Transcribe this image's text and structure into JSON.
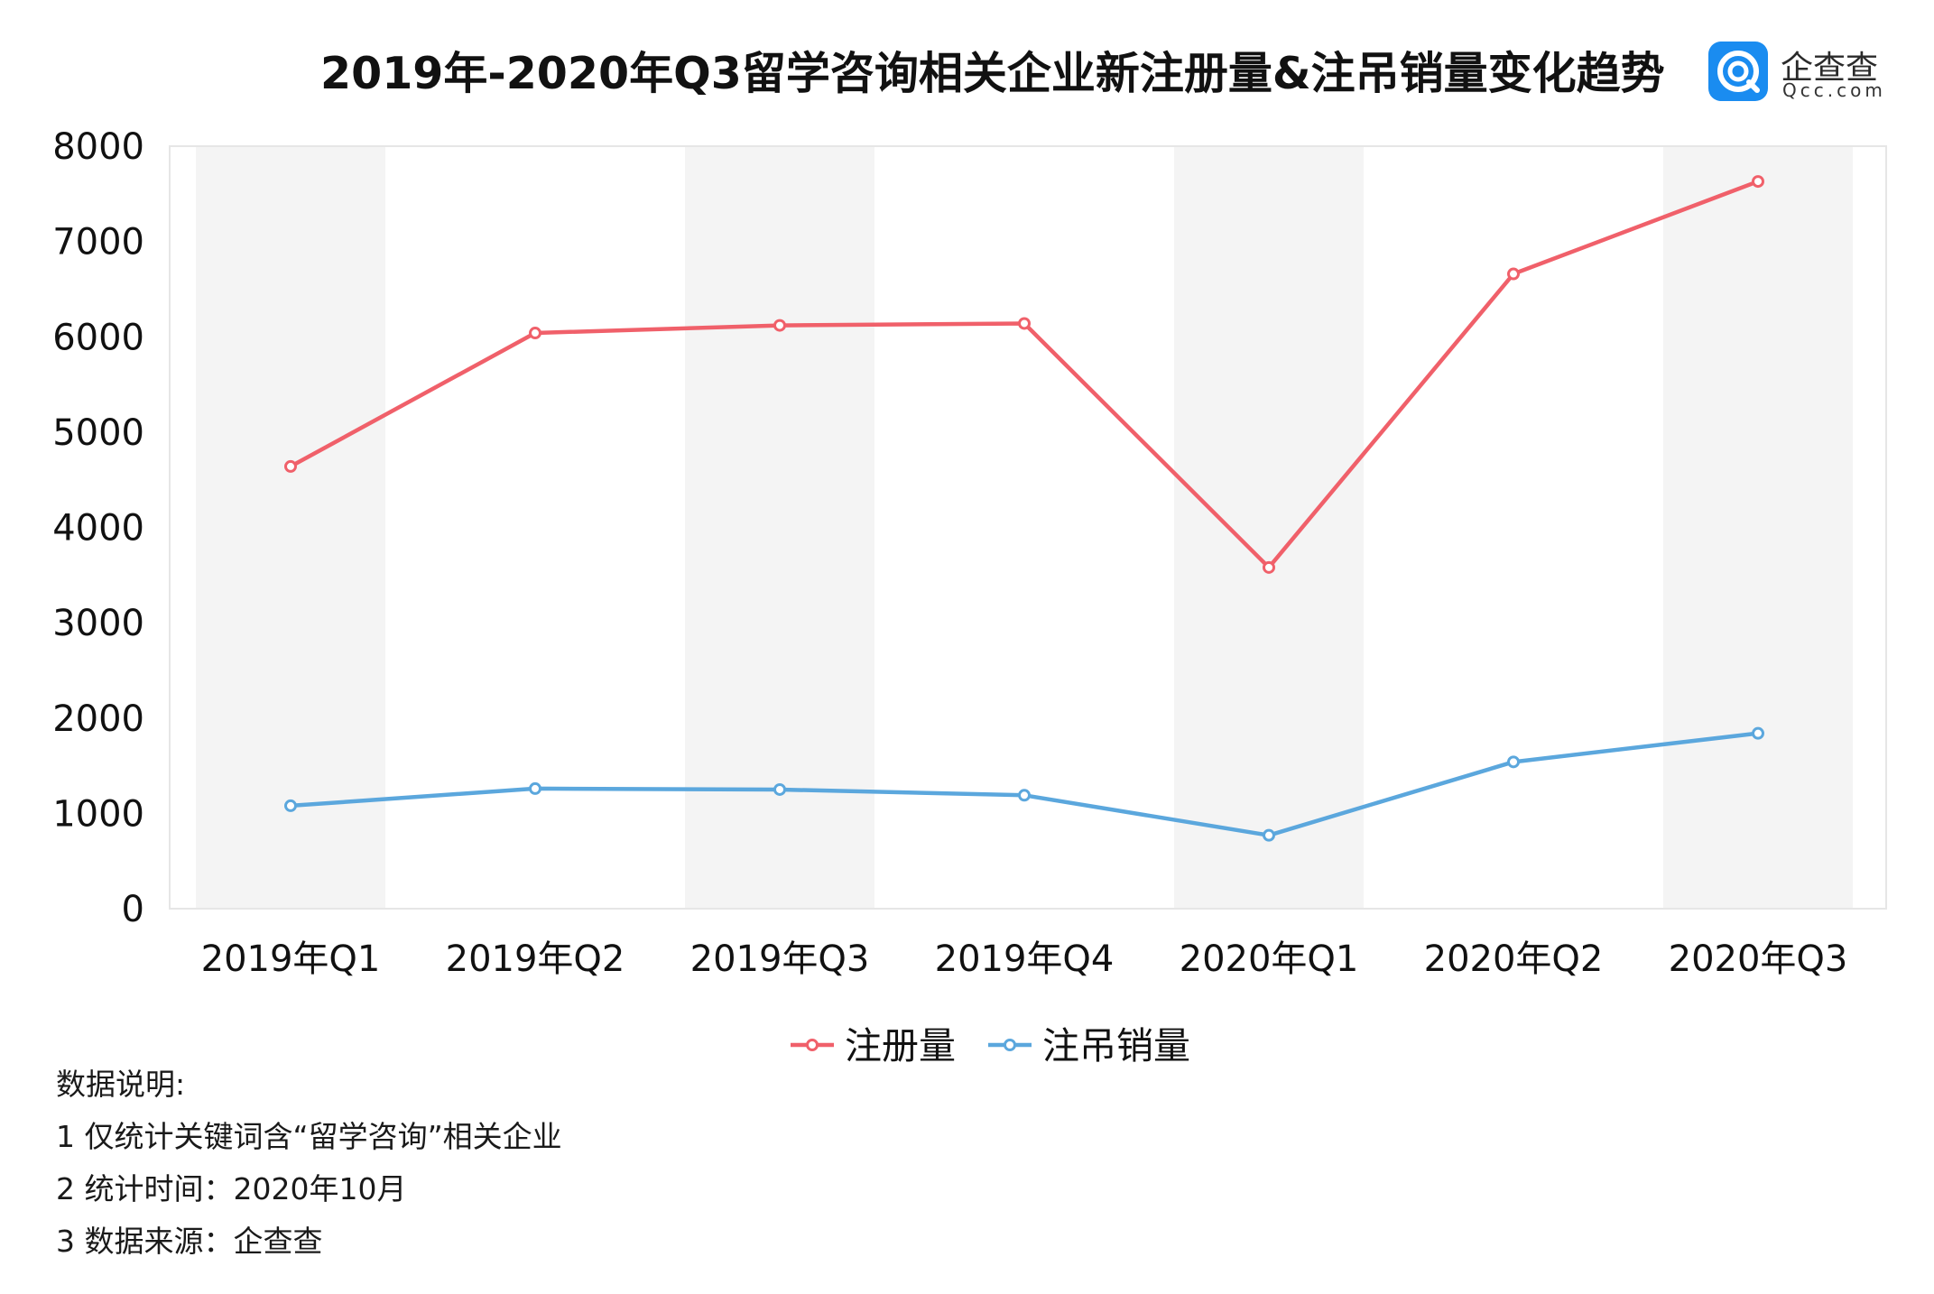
{
  "header": {
    "title": "2019年-2020年Q3留学咨询相关企业新注册量&注吊销量变化趋势",
    "logo_name": "企查查",
    "logo_domain": "Qcc.com",
    "logo_color": "#1a8cf0"
  },
  "chart_data": {
    "type": "line",
    "title": "2019年-2020年Q3留学咨询相关企业新注册量&注吊销量变化趋势",
    "categories": [
      "2019年Q1",
      "2019年Q2",
      "2019年Q3",
      "2019年Q4",
      "2020年Q1",
      "2020年Q2",
      "2020年Q3"
    ],
    "series": [
      {
        "name": "注册量",
        "color": "#f0606a",
        "values": [
          4640,
          6040,
          6120,
          6140,
          3580,
          6660,
          7630
        ]
      },
      {
        "name": "注吊销量",
        "color": "#5ba7dd",
        "values": [
          1080,
          1260,
          1250,
          1190,
          770,
          1540,
          1840
        ]
      }
    ],
    "ylim": [
      0,
      8000
    ],
    "yticks": [
      0,
      1000,
      2000,
      3000,
      4000,
      5000,
      6000,
      7000,
      8000
    ],
    "xlabel": "",
    "ylabel": "",
    "grid": false,
    "legend": "bottom-center",
    "band_color": "#f4f4f4"
  },
  "notes": {
    "heading": "数据说明:",
    "lines": [
      "1 仅统计关键词含“留学咨询”相关企业",
      "2 统计时间：2020年10月",
      "3 数据来源：企查查"
    ]
  }
}
